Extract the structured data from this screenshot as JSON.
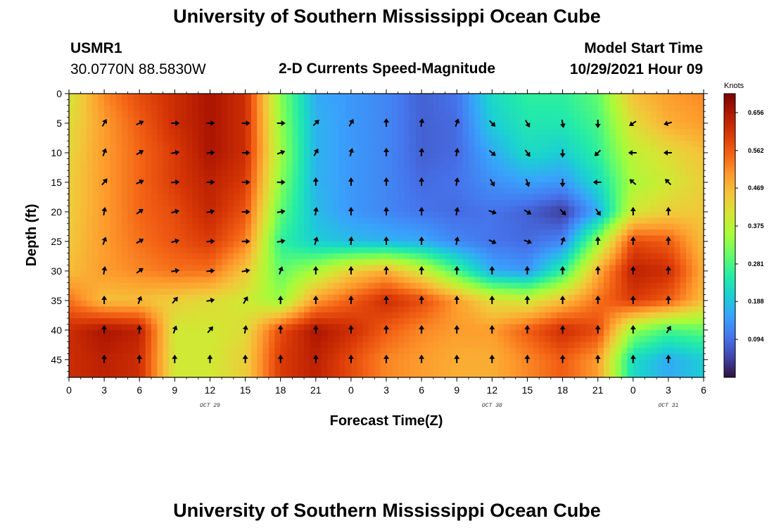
{
  "header": {
    "title": "University of Southern Mississippi Ocean Cube",
    "station_id": "USMR1",
    "coordinates": "30.0770N  88.5830W",
    "plot_name": "2-D Currents Speed-Magnitude",
    "model_start_label": "Model Start Time",
    "model_start_value": "10/29/2021 Hour 09"
  },
  "footer": {
    "title": "University of Southern Mississippi Ocean Cube"
  },
  "chart_data": {
    "type": "heatmap",
    "title": "2-D Currents Speed-Magnitude",
    "xlabel": "Forecast Time(Z)",
    "ylabel": "Depth (ft)",
    "x_hours": [
      0,
      3,
      6,
      9,
      12,
      15,
      18,
      21,
      24,
      27,
      30,
      33,
      36,
      39,
      42,
      45,
      48,
      51,
      54
    ],
    "x_tick_labels": [
      "0",
      "3",
      "6",
      "9",
      "12",
      "15",
      "18",
      "21",
      "0",
      "3",
      "6",
      "9",
      "12",
      "15",
      "18",
      "21",
      "0",
      "3",
      "6"
    ],
    "date_labels": [
      {
        "text": "OCT 29",
        "hour": 12
      },
      {
        "text": "OCT 30",
        "hour": 36
      },
      {
        "text": "OCT 31",
        "hour": 51
      }
    ],
    "y_ticks": [
      0,
      5,
      10,
      15,
      20,
      25,
      30,
      35,
      40,
      45
    ],
    "ylim": [
      0,
      48
    ],
    "xlim": [
      0,
      54
    ],
    "colorbar": {
      "unit": "Knots",
      "range": [
        0.0,
        0.703
      ],
      "labels": [
        "0.656",
        "0.562",
        "0.469",
        "0.375",
        "0.281",
        "0.188",
        "0.094"
      ],
      "colors": [
        "#30123b",
        "#4145ab",
        "#4675ed",
        "#39a2fc",
        "#1bcfd4",
        "#24eca6",
        "#61fc6c",
        "#a4fc3b",
        "#d1e834",
        "#f3c63a",
        "#fe9b2d",
        "#f36315",
        "#d93806",
        "#b11901",
        "#7a0402"
      ]
    },
    "speed_field": {
      "hours": [
        0,
        3,
        6,
        9,
        12,
        15,
        18,
        21,
        24,
        27,
        30,
        33,
        36,
        39,
        42,
        45,
        48,
        51,
        54
      ],
      "depths": [
        0,
        5,
        10,
        15,
        20,
        25,
        30,
        35,
        40,
        45
      ],
      "values_knots": [
        [
          0.4,
          0.52,
          0.58,
          0.62,
          0.66,
          0.62,
          0.33,
          0.16,
          0.14,
          0.12,
          0.08,
          0.1,
          0.22,
          0.26,
          0.26,
          0.3,
          0.46,
          0.5,
          0.52
        ],
        [
          0.42,
          0.5,
          0.56,
          0.62,
          0.66,
          0.62,
          0.34,
          0.17,
          0.14,
          0.12,
          0.08,
          0.09,
          0.2,
          0.24,
          0.24,
          0.28,
          0.42,
          0.48,
          0.5
        ],
        [
          0.43,
          0.5,
          0.55,
          0.6,
          0.66,
          0.62,
          0.35,
          0.17,
          0.14,
          0.12,
          0.08,
          0.09,
          0.16,
          0.22,
          0.2,
          0.26,
          0.38,
          0.42,
          0.46
        ],
        [
          0.44,
          0.5,
          0.55,
          0.6,
          0.64,
          0.6,
          0.33,
          0.17,
          0.14,
          0.12,
          0.09,
          0.1,
          0.13,
          0.15,
          0.14,
          0.22,
          0.36,
          0.4,
          0.44
        ],
        [
          0.44,
          0.5,
          0.55,
          0.58,
          0.63,
          0.57,
          0.3,
          0.18,
          0.14,
          0.12,
          0.1,
          0.09,
          0.1,
          0.08,
          0.04,
          0.16,
          0.4,
          0.44,
          0.45
        ],
        [
          0.45,
          0.5,
          0.54,
          0.57,
          0.6,
          0.53,
          0.26,
          0.2,
          0.18,
          0.17,
          0.16,
          0.12,
          0.1,
          0.09,
          0.12,
          0.34,
          0.58,
          0.56,
          0.46
        ],
        [
          0.46,
          0.5,
          0.52,
          0.54,
          0.54,
          0.45,
          0.3,
          0.36,
          0.44,
          0.48,
          0.4,
          0.28,
          0.16,
          0.14,
          0.26,
          0.48,
          0.64,
          0.62,
          0.48
        ],
        [
          0.54,
          0.46,
          0.46,
          0.44,
          0.42,
          0.4,
          0.34,
          0.5,
          0.56,
          0.62,
          0.58,
          0.5,
          0.42,
          0.4,
          0.46,
          0.54,
          0.6,
          0.56,
          0.46
        ],
        [
          0.62,
          0.66,
          0.64,
          0.4,
          0.4,
          0.42,
          0.58,
          0.66,
          0.62,
          0.56,
          0.52,
          0.5,
          0.5,
          0.56,
          0.62,
          0.58,
          0.34,
          0.28,
          0.3
        ],
        [
          0.62,
          0.64,
          0.62,
          0.4,
          0.4,
          0.44,
          0.6,
          0.64,
          0.58,
          0.52,
          0.5,
          0.48,
          0.48,
          0.52,
          0.56,
          0.5,
          0.22,
          0.16,
          0.2
        ]
      ]
    },
    "direction_field": {
      "hours": [
        3,
        6,
        9,
        12,
        15,
        18,
        21,
        24,
        27,
        30,
        33,
        36,
        39,
        42,
        45,
        48,
        51
      ],
      "depths": [
        5,
        10,
        15,
        20,
        25,
        30,
        35,
        40,
        45
      ],
      "angles_deg_from_north": [
        [
          30,
          65,
          90,
          90,
          90,
          90,
          45,
          30,
          0,
          10,
          20,
          135,
          150,
          170,
          180,
          235,
          255
        ],
        [
          20,
          60,
          80,
          85,
          90,
          70,
          30,
          15,
          0,
          5,
          10,
          130,
          145,
          180,
          225,
          270,
          270
        ],
        [
          40,
          65,
          85,
          90,
          90,
          90,
          0,
          0,
          0,
          0,
          10,
          150,
          160,
          180,
          270,
          310,
          315
        ],
        [
          10,
          55,
          75,
          80,
          90,
          80,
          10,
          0,
          0,
          0,
          10,
          110,
          120,
          135,
          145,
          0,
          0
        ],
        [
          20,
          60,
          75,
          85,
          90,
          80,
          15,
          5,
          0,
          0,
          10,
          115,
          110,
          20,
          0,
          0,
          0
        ],
        [
          10,
          55,
          80,
          85,
          80,
          20,
          0,
          0,
          0,
          0,
          0,
          0,
          0,
          0,
          0,
          0,
          0
        ],
        [
          0,
          20,
          40,
          80,
          30,
          0,
          0,
          0,
          0,
          0,
          0,
          0,
          0,
          0,
          0,
          0,
          0
        ],
        [
          0,
          0,
          20,
          40,
          10,
          0,
          0,
          0,
          0,
          0,
          0,
          0,
          0,
          0,
          0,
          0,
          30
        ],
        [
          0,
          0,
          0,
          0,
          0,
          0,
          0,
          0,
          0,
          0,
          0,
          0,
          0,
          0,
          0,
          0,
          0
        ]
      ]
    }
  }
}
